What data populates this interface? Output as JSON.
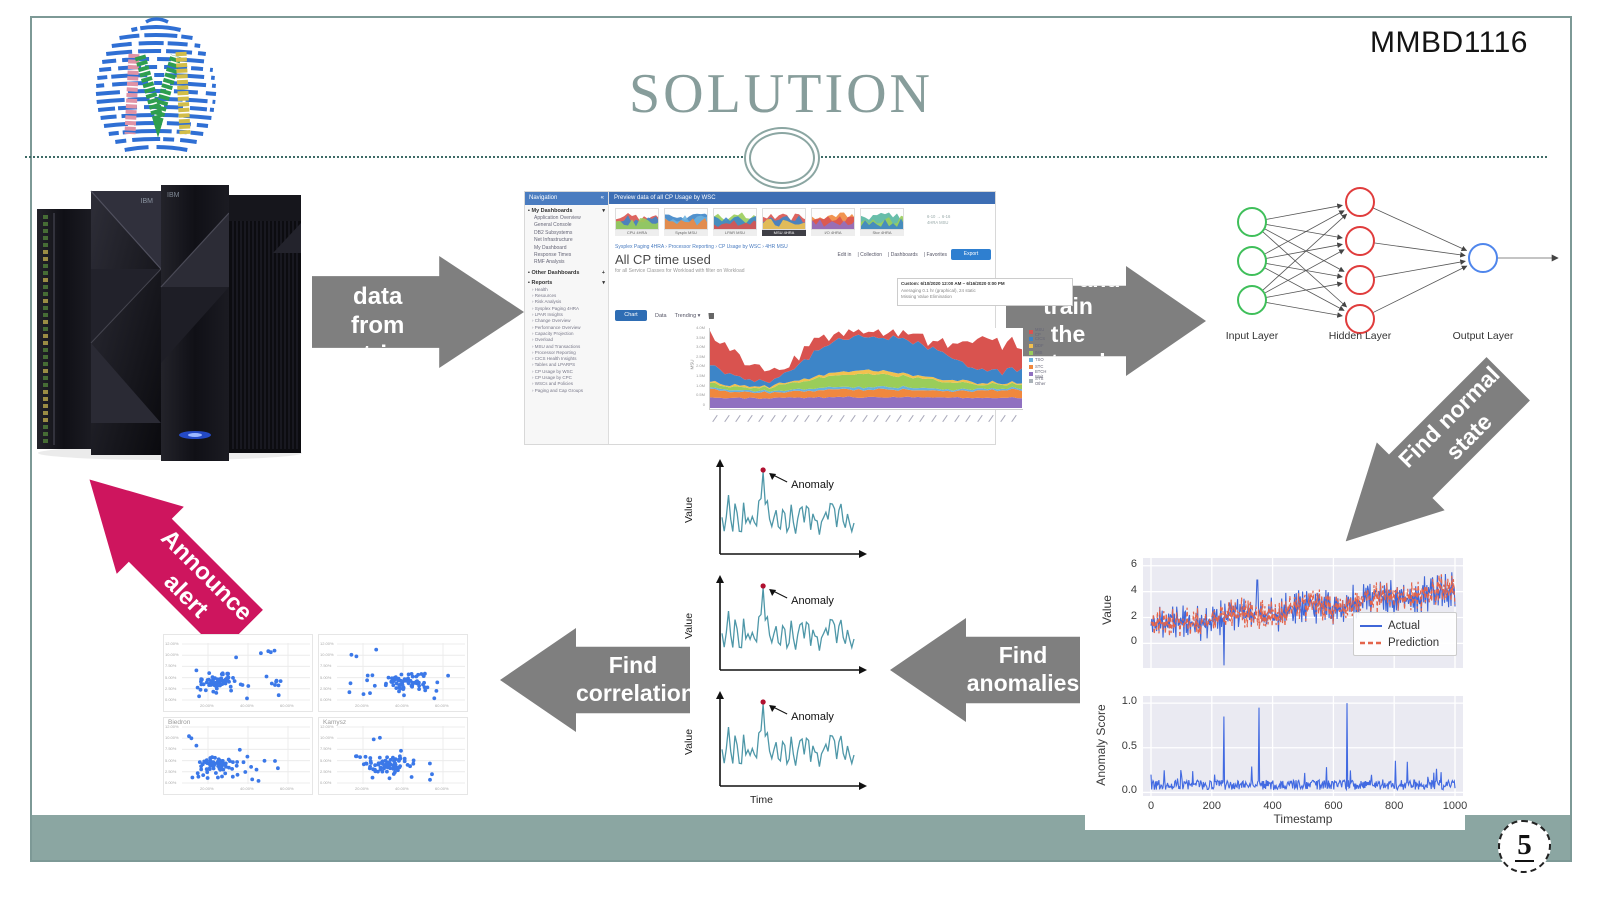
{
  "slide": {
    "course_code": "MMBD1116",
    "title": "SOLUTION",
    "page_number": "5",
    "colors": {
      "arrow_gray": "#7f7f7f",
      "arrow_pink": "#ce155e",
      "sage": "#8ba6a2",
      "frame": "#7d9996",
      "title_text": "#879d9b",
      "divider": "#3e6b66"
    }
  },
  "flow_arrows": {
    "record": {
      "line1": "Record data",
      "line2": "from metrices"
    },
    "build": {
      "line1": "Build and train",
      "line2": "the network"
    },
    "normal": {
      "line1": "Find normal",
      "line2": "state"
    },
    "anomalies": {
      "line1": "Find",
      "line2": "anomalies"
    },
    "correlations": {
      "line1": "Find",
      "line2": "correlations"
    },
    "announce": {
      "line1": "Announce",
      "line2": "alert"
    }
  },
  "mainframe": {
    "brand": "IBM"
  },
  "neural_network": {
    "labels": {
      "input": "Input Layer",
      "hidden": "Hidden Layer",
      "output": "Output Layer"
    },
    "counts": {
      "input": 3,
      "hidden": 4,
      "output": 1
    },
    "colors": {
      "input": "#3fbf5a",
      "hidden": "#e03c3c",
      "output": "#4f86ec"
    }
  },
  "dashboard": {
    "nav_title": "Navigation",
    "sections": {
      "my_dashboards": "My Dashboards",
      "other_dashboards": "Other Dashboards",
      "reports": "Reports"
    },
    "my_dashboard_items": [
      "Application Overview",
      "General Console",
      "DB2 Subsystems",
      "Net Infrastructure",
      "My Dashboard",
      "Response Times",
      "RMF Analysis"
    ],
    "report_items": [
      "Health",
      "Resources",
      "Risk Analysis",
      "Sysplex Paging 4HRA",
      "LPAR Insights",
      "Change Overview",
      "Performance Overview",
      "Capacity Projection",
      "Overload",
      "MSU and Transactions",
      "Processor Reporting",
      "CICS Health Insights",
      "Tables and LPARPS",
      "CP Usage by WSC",
      "CP Usage by CPC",
      "WSCs and Policies",
      "Paging and Cap Groups"
    ],
    "top_bar": "Preview data of all CP Usage by WSC",
    "thumbnails": [
      {
        "label": "CPU 4HRA"
      },
      {
        "label": "Sysplx MSU"
      },
      {
        "label": "LPAR MSU"
      },
      {
        "label": "MSU 4HRA"
      },
      {
        "label": "I/O 4HRA"
      },
      {
        "label": "Stor 4HRA"
      }
    ],
    "thumb_note": [
      "6-10 → 6-16",
      "4HRA MSU"
    ],
    "breadcrumb": "Sysplex Paging 4HRA  ›  Processor Reporting  ›  CP Usage by WSC  ›  4HR MSU",
    "heading": "All CP time used",
    "subheading": "for all Service Classes for Workload with filter on Workload",
    "controls": [
      "Edit in",
      "Collection",
      "Dashboards",
      "Favorites"
    ],
    "export_button": "Export",
    "tooltip": [
      "Custom: 6/10/2020 12:00 AM – 6/16/2020 0:00 PM",
      "Averaging 0.1 hr (graphical), 24 static",
      "Missing Value Elimination"
    ],
    "toolbar": {
      "chart": "Chart",
      "data": "Data",
      "trending": "Trending ▾"
    },
    "y_axis_label": "MSU",
    "y_ticks": [
      "4.0M",
      "3.5M",
      "3.0M",
      "2.5M",
      "2.0M",
      "1.5M",
      "1.0M",
      "0.5M",
      "0"
    ],
    "legend": [
      {
        "label": "MSU CP",
        "color": "#d9534f"
      },
      {
        "label": "CICS",
        "color": "#3d85c8"
      },
      {
        "label": "DDF",
        "color": "#f2c14e"
      },
      {
        "label": "IMS",
        "color": "#9acd5a"
      },
      {
        "label": "TSO",
        "color": "#6ab0de"
      },
      {
        "label": "STC",
        "color": "#f0883e"
      },
      {
        "label": "BTCH Wait",
        "color": "#9070c0"
      },
      {
        "label": "SYS Other",
        "color": "#aab2b8"
      }
    ]
  },
  "chart_data": [
    {
      "id": "cp_stacked_area",
      "type": "area",
      "title": "All CP time used",
      "ylabel": "MSU",
      "stacked": true,
      "note": "profiles are estimated fractions of plot height, bottom band first",
      "series": [
        {
          "name": "BTCH Wait",
          "color": "#9070c0",
          "noise": 0.01,
          "profile": [
            0.13,
            0.13,
            0.12,
            0.13,
            0.13,
            0.14,
            0.13,
            0.13,
            0.14,
            0.13,
            0.13,
            0.13,
            0.13
          ]
        },
        {
          "name": "STC",
          "color": "#f0883e",
          "noise": 0.015,
          "profile": [
            0.1,
            0.08,
            0.07,
            0.08,
            0.09,
            0.1,
            0.1,
            0.1,
            0.09,
            0.08,
            0.09,
            0.1,
            0.09
          ]
        },
        {
          "name": "TSO",
          "color": "#6ab0de",
          "noise": 0.005,
          "profile": [
            0.02,
            0.02,
            0.02,
            0.02,
            0.03,
            0.03,
            0.03,
            0.03,
            0.03,
            0.02,
            0.02,
            0.02,
            0.02
          ]
        },
        {
          "name": "IMS",
          "color": "#9acd5a",
          "noise": 0.02,
          "profile": [
            0.05,
            0.04,
            0.04,
            0.07,
            0.12,
            0.15,
            0.16,
            0.15,
            0.13,
            0.1,
            0.06,
            0.05,
            0.05
          ]
        },
        {
          "name": "DDF",
          "color": "#f2c14e",
          "noise": 0.01,
          "profile": [
            0.02,
            0.02,
            0.02,
            0.02,
            0.03,
            0.04,
            0.05,
            0.04,
            0.03,
            0.03,
            0.02,
            0.02,
            0.02
          ]
        },
        {
          "name": "CICS",
          "color": "#3d85c8",
          "noise": 0.04,
          "profile": [
            0.2,
            0.1,
            0.06,
            0.12,
            0.3,
            0.42,
            0.44,
            0.43,
            0.4,
            0.32,
            0.18,
            0.14,
            0.18
          ]
        },
        {
          "name": "MSU CP",
          "color": "#d9534f",
          "noise": 0.07,
          "profile": [
            0.4,
            0.28,
            0.12,
            0.1,
            0.12,
            0.1,
            0.08,
            0.08,
            0.1,
            0.14,
            0.3,
            0.42,
            0.25
          ]
        }
      ]
    },
    {
      "id": "actual_vs_prediction",
      "type": "line",
      "ylabel": "Value",
      "ylim": [
        -1.9,
        6.6
      ],
      "yticks": [
        0,
        2,
        4,
        6
      ],
      "x_range": [
        0,
        1000
      ],
      "background": "#eaeaf2",
      "legend_position": "lower right",
      "trend": {
        "start": 1.35,
        "end": 4.1
      },
      "noise_amplitude": 0.8,
      "anomaly_dip": {
        "x": 240,
        "value": -1.7
      },
      "anomaly_spike": {
        "x": 350,
        "value": 4.9
      },
      "series": [
        {
          "name": "Actual",
          "color": "#3f66d8",
          "style": "solid"
        },
        {
          "name": "Prediction",
          "color": "#e4654b",
          "style": "dashed"
        }
      ]
    },
    {
      "id": "anomaly_score",
      "type": "line",
      "ylabel": "Anomaly Score",
      "xlabel": "Timestamp",
      "yticks": [
        0.0,
        0.5,
        1.0
      ],
      "xticks": [
        0,
        200,
        400,
        600,
        800,
        1000
      ],
      "ylim": [
        -0.04,
        1.08
      ],
      "background": "#eaeaf2",
      "color": "#4169e1",
      "baseline": 0.08,
      "spikes": [
        {
          "x": 240,
          "value": 0.85
        },
        {
          "x": 355,
          "value": 0.95
        },
        {
          "x": 645,
          "value": 1.0
        }
      ]
    },
    {
      "id": "anomaly_examples",
      "type": "line",
      "copies": 3,
      "ylabel": "Value",
      "xlabel": "Time",
      "annotation": "Anomaly",
      "line_color": "#4e97a8",
      "marker_color": "#b01030",
      "spike_position": 0.3
    },
    {
      "id": "correlation_scatters",
      "type": "scatter",
      "point_color": "#3b78e8",
      "y_ticks": [
        "12.00%",
        "10.00%",
        "7.50%",
        "5.00%",
        "2.50%",
        "0.00%"
      ],
      "x_ticks": [
        "20.00%",
        "40.00%",
        "60.00%"
      ],
      "panels": [
        {
          "title": "",
          "cluster": [
            0.25,
            0.3
          ]
        },
        {
          "title": "",
          "cluster": [
            0.55,
            0.33
          ]
        },
        {
          "title": "Biedron",
          "cluster": [
            0.28,
            0.33
          ]
        },
        {
          "title": "Kamysz",
          "cluster": [
            0.42,
            0.33
          ]
        }
      ]
    }
  ]
}
